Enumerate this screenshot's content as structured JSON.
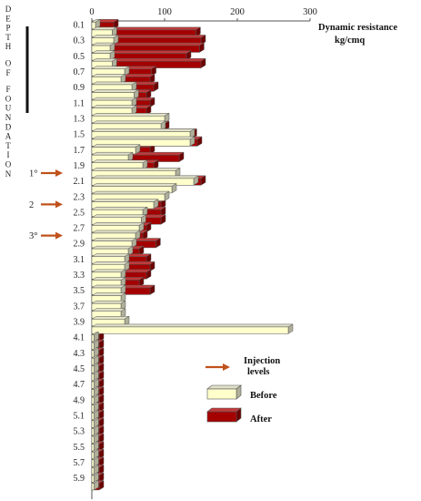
{
  "chart_data": {
    "type": "bar",
    "orientation": "horizontal",
    "title": "Dynamic resistance",
    "unit": "kg/cmq",
    "ylabel": "DEPTH OF FOUNDATION",
    "xlim": [
      0,
      300
    ],
    "x_ticks": [
      "0",
      "100",
      "200",
      "300"
    ],
    "depth_labels": [
      "0.1",
      "0.3",
      "0.5",
      "0.7",
      "0.9",
      "1.1",
      "1.3",
      "1.5",
      "1.7",
      "1.9",
      "2.1",
      "2.3",
      "2.5",
      "2.7",
      "2.9",
      "3.1",
      "3.3",
      "3.5",
      "3.7",
      "3.9",
      "4.1",
      "4.3",
      "4.5",
      "4.7",
      "4.9",
      "5.1",
      "5.3",
      "5.5",
      "5.7",
      "5.9"
    ],
    "depths": [
      0.1,
      0.2,
      0.3,
      0.4,
      0.5,
      0.6,
      0.7,
      0.8,
      0.9,
      1.0,
      1.1,
      1.2,
      1.3,
      1.4,
      1.5,
      1.6,
      1.7,
      1.8,
      1.9,
      2.0,
      2.1,
      2.2,
      2.3,
      2.4,
      2.5,
      2.6,
      2.7,
      2.8,
      2.9,
      3.0,
      3.1,
      3.2,
      3.3,
      3.4,
      3.5,
      3.6,
      3.7,
      3.8,
      3.9,
      4.0,
      4.1,
      4.2,
      4.3,
      4.4,
      4.5,
      4.6,
      4.7,
      4.8,
      4.9,
      5.0,
      5.1,
      5.2,
      5.3,
      5.4,
      5.5,
      5.6,
      5.7,
      5.8,
      5.9,
      6.0
    ],
    "series": [
      {
        "name": "Before",
        "color": "#ffffcc",
        "values": [
          5,
          28,
          30,
          25,
          25,
          28,
          45,
          40,
          55,
          58,
          55,
          55,
          100,
          95,
          135,
          135,
          60,
          50,
          70,
          115,
          140,
          110,
          100,
          85,
          70,
          68,
          65,
          60,
          55,
          50,
          45,
          45,
          40,
          40,
          40,
          40,
          40,
          40,
          45,
          270,
          3,
          3,
          3,
          3,
          3,
          3,
          3,
          3,
          3,
          3,
          3,
          3,
          3,
          3,
          3,
          3,
          3,
          3,
          3,
          3
        ]
      },
      {
        "name": "After",
        "color": "#a50000",
        "values": [
          30,
          143,
          150,
          148,
          130,
          150,
          82,
          80,
          85,
          75,
          80,
          75,
          85,
          100,
          138,
          145,
          80,
          120,
          85,
          null,
          150,
          100,
          95,
          95,
          95,
          95,
          75,
          70,
          88,
          65,
          75,
          80,
          75,
          65,
          80,
          null,
          null,
          null,
          null,
          null,
          10,
          10,
          10,
          10,
          10,
          10,
          10,
          10,
          10,
          10,
          10,
          10,
          10,
          10,
          10,
          10,
          10,
          10,
          10,
          10
        ]
      }
    ],
    "injection_levels": {
      "legend_label": "Injection levels",
      "markers": [
        {
          "label": "1°",
          "depth": 2.0
        },
        {
          "label": "2",
          "depth": 2.4
        },
        {
          "label": "3°",
          "depth": 2.8
        }
      ]
    },
    "foundation_depth_range": [
      0.0,
      1.2
    ],
    "colors": {
      "before": "#ffffcc",
      "after": "#a50000",
      "arrow": "#c0521b",
      "outline": "#555555"
    }
  }
}
